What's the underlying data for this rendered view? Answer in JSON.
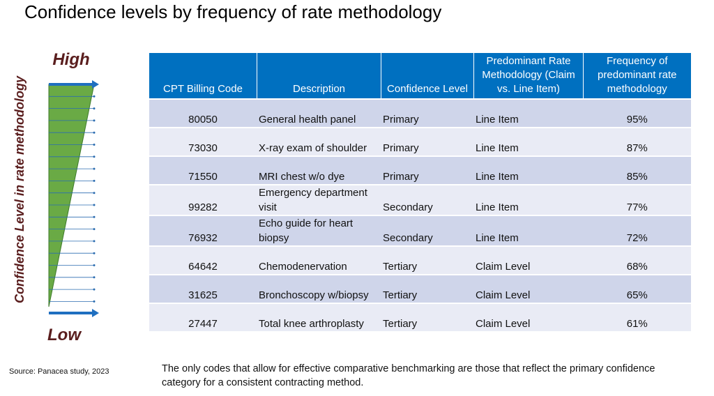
{
  "title": "Confidence levels by frequency of rate methodology",
  "side": {
    "label": "Confidence Level  in rate methodology",
    "high": "High",
    "low": "Low"
  },
  "table": {
    "columns": [
      "CPT Billing Code",
      "Description",
      "Confidence Level",
      "Predominant Rate Methodology (Claim vs. Line Item)",
      "Frequency of predominant rate methodology"
    ],
    "rows": [
      [
        "80050",
        "General health panel",
        "Primary",
        "Line Item",
        "95%"
      ],
      [
        "73030",
        "X-ray exam of shoulder",
        "Primary",
        "Line Item",
        "87%"
      ],
      [
        "71550",
        "MRI chest w/o dye",
        "Primary",
        "Line Item",
        "85%"
      ],
      [
        "99282",
        "Emergency department visit",
        "Secondary",
        "Line Item",
        "77%"
      ],
      [
        "76932",
        "Echo guide for heart biopsy",
        "Secondary",
        "Line Item",
        "72%"
      ],
      [
        "64642",
        "Chemodenervation",
        "Tertiary",
        "Claim Level",
        "68%"
      ],
      [
        "31625",
        "Bronchoscopy w/biopsy",
        "Tertiary",
        "Claim Level",
        "65%"
      ],
      [
        "27447",
        "Total knee arthroplasty",
        "Tertiary",
        "Claim Level",
        "61%"
      ]
    ]
  },
  "source": "Source: Panacea study, 2023",
  "note": "The only codes that allow for effective comparative benchmarking are those that reflect the primary confidence category for a consistent contracting method."
}
